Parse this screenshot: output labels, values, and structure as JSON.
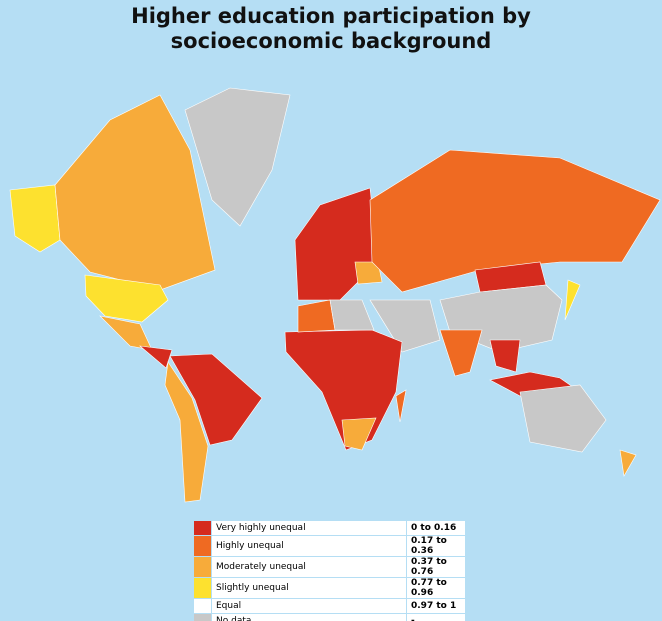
{
  "title": "Higher education participation by socioeconomic background",
  "legend": [
    {
      "label": "Very highly unequal",
      "range": "0 to 0.16",
      "color": "#d52b1e"
    },
    {
      "label": "Highly unequal",
      "range": "0.17 to 0.36",
      "color": "#ef6a22"
    },
    {
      "label": "Moderately unequal",
      "range": "0.37 to 0.76",
      "color": "#f7ab3a"
    },
    {
      "label": "Slightly unequal",
      "range": "0.77 to 0.96",
      "color": "#fde12f"
    },
    {
      "label": "Equal",
      "range": "0.97 to 1",
      "color": "#ffffff"
    },
    {
      "label": "No data",
      "range": "-",
      "color": "#c8c8c8"
    }
  ]
}
